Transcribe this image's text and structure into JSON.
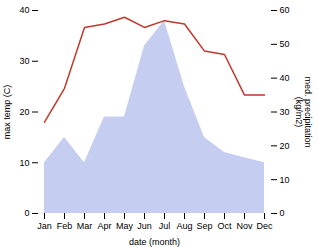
{
  "chart_data": {
    "type": "combo",
    "categories": [
      "Jan",
      "Feb",
      "Mar",
      "Apr",
      "May",
      "Jun",
      "Jul",
      "Aug",
      "Sep",
      "Oct",
      "Nov",
      "Dec"
    ],
    "series": [
      {
        "type": "area",
        "color": "#c5cef0",
        "values": [
          10,
          15,
          10,
          19,
          19,
          33,
          38,
          25,
          15,
          12,
          11,
          10
        ]
      },
      {
        "type": "line",
        "color": "#c0392b",
        "axis": "y2",
        "values": [
          27,
          37,
          55,
          56,
          58,
          55,
          57,
          56,
          48,
          47,
          35,
          35
        ]
      }
    ],
    "xlabel": "date (month)",
    "ylabel": "max temp (C)",
    "y2label": "med. precipitation\n(kg/m2)",
    "ylim": [
      0,
      40
    ],
    "yticks": [
      0,
      10,
      20,
      30,
      40
    ],
    "y2lim": [
      0,
      60
    ],
    "y2ticks": [
      0,
      10,
      20,
      30,
      40,
      50,
      60
    ],
    "grid": false
  }
}
